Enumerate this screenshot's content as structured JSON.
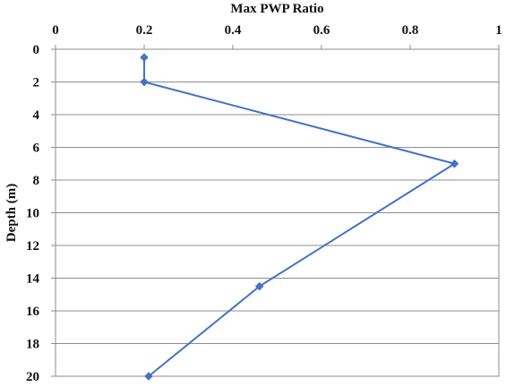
{
  "chart_data": {
    "type": "line",
    "title": "",
    "xlabel": "Max PWP Ratio",
    "ylabel": "Depth (m)",
    "x_axis_position": "top",
    "y_axis_inverted": true,
    "xlim": [
      0,
      1
    ],
    "ylim": [
      0,
      20
    ],
    "x_ticks": [
      0,
      0.2,
      0.4,
      0.6,
      0.8,
      1
    ],
    "x_tick_labels": [
      "0",
      "0.2",
      "0.4",
      "0.6",
      "0.8",
      "1"
    ],
    "y_ticks": [
      0,
      2,
      4,
      6,
      8,
      10,
      12,
      14,
      16,
      18,
      20
    ],
    "y_tick_labels": [
      "0",
      "2",
      "4",
      "6",
      "8",
      "10",
      "12",
      "14",
      "16",
      "18",
      "20"
    ],
    "grid": {
      "horizontal": true,
      "vertical": false
    },
    "legend": "none",
    "series": [
      {
        "x": [
          0.2,
          0.2,
          0.9,
          0.46,
          0.21
        ],
        "y": [
          0.5,
          2,
          7,
          14.5,
          20
        ],
        "marker": "diamond",
        "color": "#4472C4"
      }
    ],
    "colors": {
      "line": "#4472C4",
      "grid": "#8c8c8c",
      "axis": "#8c8c8c",
      "text": "#111111"
    }
  }
}
